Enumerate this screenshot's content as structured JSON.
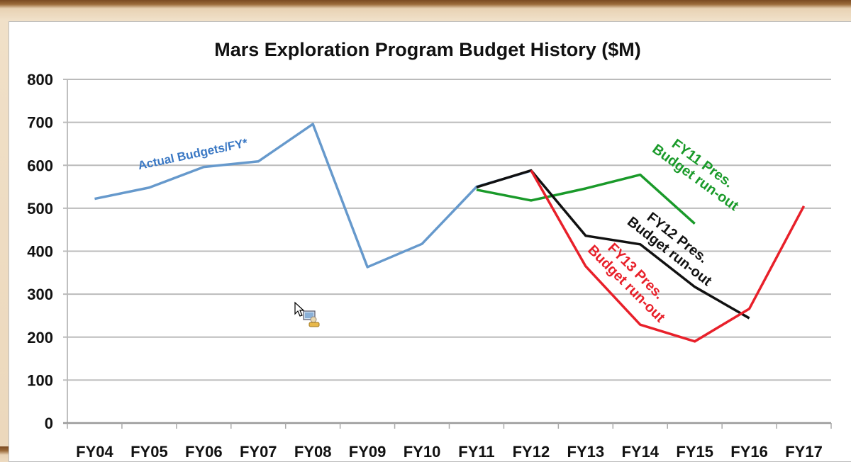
{
  "chart_data": {
    "type": "line",
    "title": "Mars Exploration Program Budget History ($M)",
    "xlabel": "",
    "ylabel": "",
    "categories": [
      "FY04",
      "FY05",
      "FY06",
      "FY07",
      "FY08",
      "FY09",
      "FY10",
      "FY11",
      "FY12",
      "FY13",
      "FY14",
      "FY15",
      "FY16",
      "FY17"
    ],
    "ylim": [
      0,
      800
    ],
    "yticks": [
      0,
      100,
      200,
      300,
      400,
      500,
      600,
      700,
      800
    ],
    "grid": true,
    "series": [
      {
        "name": "Actual Budgets/FY*",
        "color": "#6699cc",
        "values": [
          522,
          548,
          596,
          609,
          696,
          363,
          417,
          550,
          587,
          null,
          null,
          null,
          null,
          null
        ]
      },
      {
        "name": "FY11 Pres. Budget run-out",
        "color": "#1a9a2a",
        "values": [
          null,
          null,
          null,
          null,
          null,
          null,
          null,
          543,
          518,
          546,
          578,
          464,
          null,
          null
        ]
      },
      {
        "name": "FY12 Pres. Budget run-out",
        "color": "#111111",
        "values": [
          null,
          null,
          null,
          null,
          null,
          null,
          null,
          549,
          588,
          436,
          416,
          317,
          244,
          null
        ]
      },
      {
        "name": "FY13 Pres. Budget run-out",
        "color": "#e8202a",
        "values": [
          null,
          null,
          null,
          null,
          null,
          null,
          null,
          null,
          588,
          365,
          229,
          190,
          266,
          505
        ]
      }
    ],
    "annotations": [
      {
        "line1": "Actual Budgets/FY*",
        "line2": "",
        "color": "#3a78c4"
      },
      {
        "line1": "FY11 Pres.",
        "line2": "Budget run-out",
        "color": "#1a9a2a"
      },
      {
        "line1": "FY12 Pres.",
        "line2": "Budget run-out",
        "color": "#111111"
      },
      {
        "line1": "FY13 Pres.",
        "line2": "Budget run-out",
        "color": "#e8202a"
      }
    ]
  },
  "cursor": {
    "icon": "pointer-with-remote-desktop-icon"
  }
}
